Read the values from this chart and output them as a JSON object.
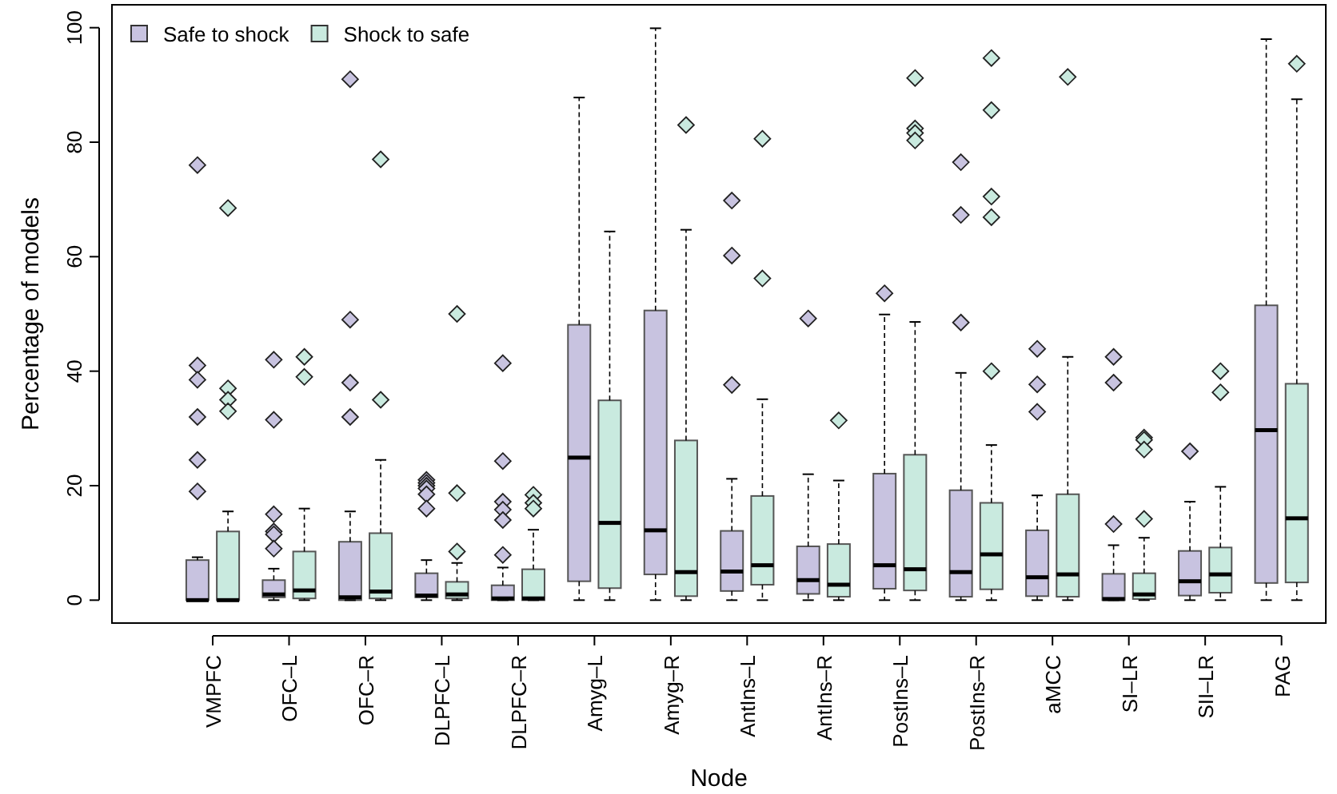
{
  "chart_data": {
    "type": "box",
    "xlabel": "Node",
    "ylabel": "Percentage of models",
    "legend": "top left",
    "marker": "diamond",
    "ylim": [
      -4,
      104
    ],
    "yticks": [
      0,
      20,
      40,
      60,
      80,
      100
    ],
    "categories": [
      "VMPFC",
      "OFC–L",
      "OFC–R",
      "DLPFC–L",
      "DLPFC–R",
      "Amyg–L",
      "Amyg–R",
      "AntIns–L",
      "AntIns–R",
      "PostIns–L",
      "PostIns–R",
      "aMCC",
      "SI–LR",
      "SII–LR",
      "PAG"
    ],
    "series": [
      {
        "name": "Safe to shock",
        "color": "#c8c3e0",
        "boxes": [
          {
            "low": 0,
            "q1": 0,
            "median": 0,
            "q3": 7,
            "high": 7.5,
            "outliers": [
              76,
              41,
              38.5,
              32,
              24.5,
              19
            ]
          },
          {
            "low": 0,
            "q1": 0.5,
            "median": 1,
            "q3": 3.5,
            "high": 5.5,
            "outliers": [
              42,
              31.5,
              15,
              12,
              11.5,
              9
            ]
          },
          {
            "low": 0,
            "q1": 0,
            "median": 0.5,
            "q3": 10.2,
            "high": 15.5,
            "outliers": [
              91,
              49,
              38,
              32
            ]
          },
          {
            "low": 0,
            "q1": 0.5,
            "median": 0.8,
            "q3": 4.7,
            "high": 7,
            "outliers": [
              21,
              20.5,
              20,
              19.5,
              18.5,
              16
            ]
          },
          {
            "low": 0,
            "q1": 0,
            "median": 0.3,
            "q3": 2.6,
            "high": 5.7,
            "outliers": [
              41.4,
              24.3,
              17.2,
              15.8,
              14,
              7.9
            ]
          },
          {
            "low": 0,
            "q1": 3.3,
            "median": 24.9,
            "q3": 48.1,
            "high": 87.8
          },
          {
            "low": 0,
            "q1": 4.5,
            "median": 12.2,
            "q3": 50.6,
            "high": 99.9
          },
          {
            "low": 0,
            "q1": 1.6,
            "median": 5,
            "q3": 12.1,
            "high": 21.2,
            "outliers": [
              69.8,
              60.2,
              37.6
            ]
          },
          {
            "low": 0,
            "q1": 1.1,
            "median": 3.5,
            "q3": 9.4,
            "high": 22,
            "outliers": [
              49.2
            ]
          },
          {
            "low": 0,
            "q1": 2,
            "median": 6.1,
            "q3": 22.1,
            "high": 49.9,
            "outliers": [
              53.6
            ]
          },
          {
            "low": 0,
            "q1": 0.6,
            "median": 4.9,
            "q3": 19.2,
            "high": 39.7,
            "outliers": [
              76.5,
              67.3,
              48.5
            ]
          },
          {
            "low": 0,
            "q1": 0.7,
            "median": 4,
            "q3": 12.2,
            "high": 18.3,
            "outliers": [
              43.9,
              37.7,
              32.9
            ]
          },
          {
            "low": 0,
            "q1": 0,
            "median": 0.2,
            "q3": 4.6,
            "high": 9.6,
            "outliers": [
              42.5,
              38,
              13.3
            ]
          },
          {
            "low": 0,
            "q1": 0.8,
            "median": 3.3,
            "q3": 8.6,
            "high": 17.2,
            "outliers": [
              26
            ]
          },
          {
            "low": 0,
            "q1": 3,
            "median": 29.7,
            "q3": 51.5,
            "high": 98
          }
        ]
      },
      {
        "name": "Shock to safe",
        "color": "#c9eadf",
        "boxes": [
          {
            "low": 0,
            "q1": 0,
            "median": 0,
            "q3": 12,
            "high": 15.5,
            "outliers": [
              68.5,
              37,
              35,
              33
            ]
          },
          {
            "low": 0,
            "q1": 0.3,
            "median": 1.7,
            "q3": 8.5,
            "high": 16,
            "outliers": [
              42.5,
              39
            ]
          },
          {
            "low": 0,
            "q1": 0.3,
            "median": 1.5,
            "q3": 11.7,
            "high": 24.5,
            "outliers": [
              77,
              35
            ]
          },
          {
            "low": 0,
            "q1": 0.3,
            "median": 1,
            "q3": 3.2,
            "high": 6.5,
            "outliers": [
              50,
              18.7,
              8.5
            ]
          },
          {
            "low": 0,
            "q1": 0,
            "median": 0.3,
            "q3": 5.4,
            "high": 12.3,
            "outliers": [
              18.4,
              17,
              16
            ]
          },
          {
            "low": 0,
            "q1": 2.1,
            "median": 13.5,
            "q3": 34.9,
            "high": 64.4
          },
          {
            "low": 0,
            "q1": 0.7,
            "median": 4.9,
            "q3": 27.9,
            "high": 64.7,
            "outliers": [
              83
            ]
          },
          {
            "low": 0,
            "q1": 2.7,
            "median": 6.1,
            "q3": 18.2,
            "high": 35.1,
            "outliers": [
              80.6,
              56.2
            ]
          },
          {
            "low": 0,
            "q1": 0.6,
            "median": 2.7,
            "q3": 9.8,
            "high": 20.9,
            "outliers": [
              31.4
            ]
          },
          {
            "low": 0,
            "q1": 1.7,
            "median": 5.4,
            "q3": 25.4,
            "high": 48.6,
            "outliers": [
              91.2,
              82.4,
              81.6,
              80.3
            ]
          },
          {
            "low": 0,
            "q1": 1.9,
            "median": 8,
            "q3": 17,
            "high": 27.1,
            "outliers": [
              94.7,
              85.6,
              70.5,
              66.9,
              40
            ]
          },
          {
            "low": 0,
            "q1": 0.6,
            "median": 4.5,
            "q3": 18.5,
            "high": 42.5,
            "outliers": [
              91.4
            ]
          },
          {
            "low": 0,
            "q1": 0.2,
            "median": 1,
            "q3": 4.7,
            "high": 10.9,
            "outliers": [
              28.4,
              28,
              26.3,
              14.2
            ]
          },
          {
            "low": 0,
            "q1": 1.3,
            "median": 4.5,
            "q3": 9.2,
            "high": 19.8,
            "outliers": [
              40,
              36.3
            ]
          },
          {
            "low": 0,
            "q1": 3.1,
            "median": 14.3,
            "q3": 37.8,
            "high": 87.5,
            "outliers": [
              93.7
            ]
          }
        ]
      }
    ]
  }
}
